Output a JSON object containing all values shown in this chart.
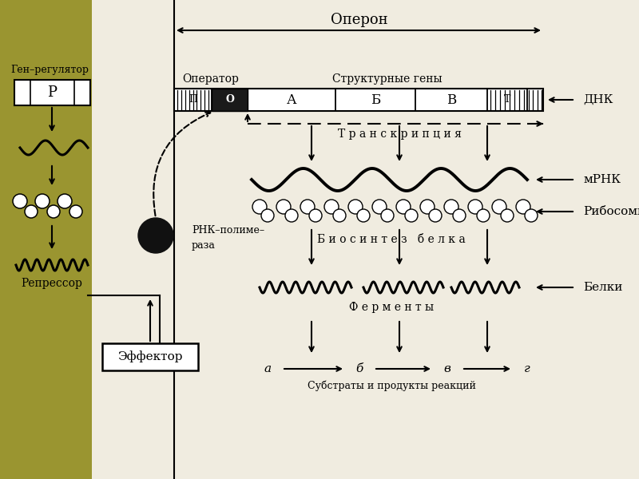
{
  "bg_left": "#9a9530",
  "bg_main": "#f0ece0",
  "label_operon": "Оперон",
  "label_gen_reg": "Ген–регулятор",
  "label_operator": "Оператор",
  "label_struct_genes": "Структурные гены",
  "label_dnk": "ДНК",
  "label_mrna": "мРНК",
  "label_ribosomes": "Рибосомы",
  "label_repressor": "Репрессор",
  "label_rna_pol_1": "РНК–полиме–",
  "label_rna_pol_2": "раза",
  "label_effector": "Эффектор",
  "label_transcription": "Т р а н с к р и п ц и я",
  "label_biosynthesis": "Б и о с и н т е з   б е л к а",
  "label_ferments": "Ф е р м е н т ы",
  "label_belki": "Белки",
  "label_substrates": "Субстраты и продукты реакций",
  "substrate_labels": [
    "а",
    "б",
    "в",
    "г"
  ]
}
